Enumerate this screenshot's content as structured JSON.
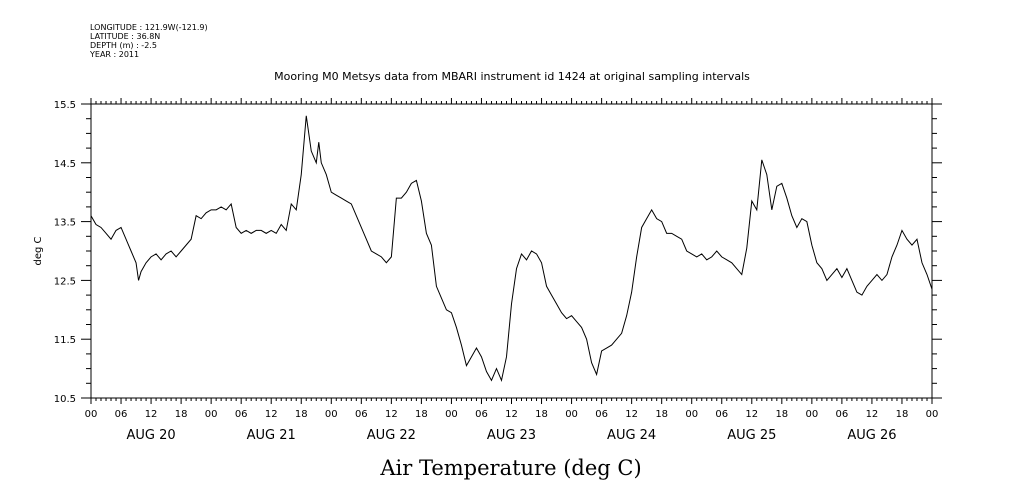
{
  "meta": {
    "longitude": "LONGITUDE : 121.9W(-121.9)",
    "latitude": "LATITUDE : 36.8N",
    "depth": "DEPTH (m) : -2.5",
    "year": "YEAR : 2011"
  },
  "chart_data": {
    "type": "line",
    "title": "Mooring M0 Metsys data from MBARI instrument id 1424 at original sampling intervals",
    "xlabel": "Air Temperature (deg C)",
    "ylabel": "deg C",
    "ylim": [
      10.5,
      15.5
    ],
    "yticks": [
      "10.5",
      "11.5",
      "12.5",
      "13.5",
      "14.5",
      "15.5"
    ],
    "xlim_hours": [
      0,
      168
    ],
    "hour_tick_labels": [
      "00",
      "06",
      "12",
      "18",
      "00",
      "06",
      "12",
      "18",
      "00",
      "06",
      "12",
      "18",
      "00",
      "06",
      "12",
      "18",
      "00",
      "06",
      "12",
      "18",
      "00",
      "06",
      "12",
      "18",
      "00",
      "06",
      "12",
      "18",
      "00"
    ],
    "day_labels": [
      "AUG 20",
      "AUG 21",
      "AUG 22",
      "AUG 23",
      "AUG 24",
      "AUG 25",
      "AUG 26"
    ],
    "grid": false,
    "series": [
      {
        "color": "#000000",
        "x_hours": [
          0,
          1,
          2,
          3,
          4,
          5,
          6,
          7,
          8,
          9,
          9.5,
          10,
          11,
          12,
          13,
          14,
          15,
          16,
          17,
          18,
          19,
          20,
          21,
          22,
          23,
          24,
          25,
          26,
          27,
          28,
          29,
          30,
          31,
          32,
          33,
          34,
          35,
          36,
          37,
          38,
          39,
          40,
          41,
          42,
          43,
          44,
          45,
          45.5,
          46,
          47,
          48,
          49,
          50,
          51,
          52,
          53,
          54,
          55,
          56,
          57,
          58,
          59,
          60,
          61,
          62,
          63,
          64,
          65,
          66,
          67,
          68,
          69,
          70,
          71,
          72,
          73,
          74,
          75,
          76,
          77,
          78,
          79,
          80,
          81,
          82,
          83,
          84,
          85,
          86,
          87,
          88,
          89,
          90,
          91,
          92,
          93,
          94,
          95,
          96,
          97,
          98,
          99,
          100,
          101,
          102,
          103,
          104,
          105,
          106,
          107,
          108,
          109,
          110,
          111,
          112,
          113,
          114,
          115,
          116,
          117,
          118,
          119,
          120,
          121,
          122,
          123,
          124,
          125,
          126,
          127,
          128,
          129,
          130,
          131,
          132,
          133,
          134,
          135,
          136,
          137,
          138,
          139,
          140,
          141,
          142,
          143,
          144,
          145,
          146,
          147,
          148,
          149,
          150,
          151,
          152,
          153,
          154,
          155,
          156,
          157,
          158,
          159,
          160,
          161,
          162,
          163,
          164,
          165,
          166,
          167,
          168
        ],
        "values": [
          13.6,
          13.45,
          13.4,
          13.3,
          13.2,
          13.35,
          13.4,
          13.2,
          13.0,
          12.8,
          12.5,
          12.65,
          12.8,
          12.9,
          12.95,
          12.85,
          12.95,
          13.0,
          12.9,
          13.0,
          13.1,
          13.2,
          13.6,
          13.55,
          13.65,
          13.7,
          13.7,
          13.75,
          13.7,
          13.8,
          13.4,
          13.3,
          13.35,
          13.3,
          13.35,
          13.35,
          13.3,
          13.35,
          13.3,
          13.45,
          13.35,
          13.8,
          13.7,
          14.3,
          15.3,
          14.7,
          14.5,
          14.85,
          14.5,
          14.3,
          14.0,
          13.95,
          13.9,
          13.85,
          13.8,
          13.6,
          13.4,
          13.2,
          13.0,
          12.95,
          12.9,
          12.8,
          12.9,
          13.9,
          13.9,
          14.0,
          14.15,
          14.2,
          13.85,
          13.3,
          13.1,
          12.4,
          12.2,
          12.0,
          11.95,
          11.7,
          11.4,
          11.05,
          11.2,
          11.35,
          11.2,
          10.95,
          10.8,
          11.0,
          10.8,
          11.2,
          12.1,
          12.7,
          12.95,
          12.85,
          13.0,
          12.95,
          12.8,
          12.4,
          12.25,
          12.1,
          11.95,
          11.85,
          11.9,
          11.8,
          11.7,
          11.5,
          11.1,
          10.9,
          11.3,
          11.35,
          11.4,
          11.5,
          11.6,
          11.9,
          12.3,
          12.9,
          13.4,
          13.55,
          13.7,
          13.55,
          13.5,
          13.3,
          13.3,
          13.25,
          13.2,
          13.0,
          12.95,
          12.9,
          12.95,
          12.85,
          12.9,
          13.0,
          12.9,
          12.85,
          12.8,
          12.7,
          12.6,
          13.05,
          13.85,
          13.7,
          14.55,
          14.3,
          13.7,
          14.1,
          14.15,
          13.9,
          13.6,
          13.4,
          13.55,
          13.5,
          13.1,
          12.8,
          12.7,
          12.5,
          12.6,
          12.7,
          12.55,
          12.7,
          12.5,
          12.3,
          12.25,
          12.4,
          12.5,
          12.6,
          12.5,
          12.6,
          12.9,
          13.1,
          13.35,
          13.2,
          13.1,
          13.2,
          12.8,
          12.6,
          12.35
        ]
      }
    ]
  }
}
